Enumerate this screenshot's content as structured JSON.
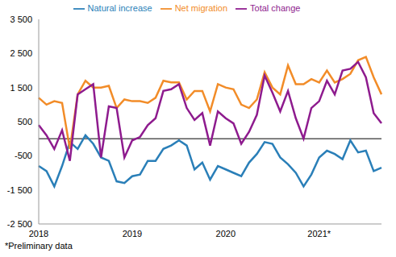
{
  "chart_data": {
    "type": "line",
    "note": "*Preliminary data",
    "categories": [
      "2018",
      null,
      null,
      null,
      null,
      null,
      null,
      null,
      null,
      null,
      null,
      null,
      "2019",
      null,
      null,
      null,
      null,
      null,
      null,
      null,
      null,
      null,
      null,
      null,
      "2020",
      null,
      null,
      null,
      null,
      null,
      null,
      null,
      null,
      null,
      null,
      null,
      "2021*",
      null,
      null,
      null,
      null,
      null,
      null,
      null,
      null
    ],
    "series": [
      {
        "name": "Natural increase",
        "color": "#2a7fb8",
        "values": [
          -800,
          -950,
          -1400,
          -800,
          -100,
          -300,
          100,
          -150,
          -550,
          -650,
          -1250,
          -1300,
          -1100,
          -1050,
          -650,
          -650,
          -300,
          -200,
          -50,
          -200,
          -900,
          -700,
          -1200,
          -800,
          -900,
          -1000,
          -1100,
          -700,
          -450,
          -100,
          -150,
          -550,
          -750,
          -1000,
          -1400,
          -1050,
          -550,
          -350,
          -450,
          -600,
          -50,
          -400,
          -350,
          -950,
          -850
        ]
      },
      {
        "name": "Net migration",
        "color": "#f28c28",
        "values": [
          1200,
          1000,
          1100,
          1050,
          -300,
          1300,
          1700,
          1500,
          1500,
          1550,
          900,
          1150,
          1100,
          1100,
          1050,
          1200,
          1700,
          1650,
          1650,
          1150,
          1400,
          1400,
          800,
          1600,
          1500,
          1450,
          1000,
          900,
          1150,
          1950,
          1500,
          1300,
          2150,
          1600,
          1600,
          1750,
          1650,
          2000,
          1650,
          1750,
          1900,
          2300,
          2400,
          1800,
          1300
        ]
      },
      {
        "name": "Total change",
        "color": "#8e1b8e",
        "values": [
          400,
          100,
          -300,
          250,
          -650,
          1300,
          1450,
          1600,
          -550,
          950,
          900,
          -550,
          -50,
          50,
          400,
          600,
          1400,
          1450,
          1600,
          900,
          550,
          750,
          -200,
          800,
          600,
          450,
          -150,
          200,
          700,
          1850,
          1350,
          800,
          1400,
          600,
          0,
          900,
          1100,
          1700,
          1300,
          2000,
          2050,
          2250,
          1800,
          750,
          450
        ]
      }
    ],
    "ylim": [
      -2500,
      3500
    ],
    "yticks": [
      {
        "value": -2500,
        "label": "-2 500"
      },
      {
        "value": -1500,
        "label": "-1 500"
      },
      -500,
      500,
      {
        "value": 1500,
        "label": "1 500"
      },
      {
        "value": 2500,
        "label": "2 500"
      },
      {
        "value": 3500,
        "label": "3 500"
      }
    ],
    "grid": false,
    "legend": "top"
  }
}
